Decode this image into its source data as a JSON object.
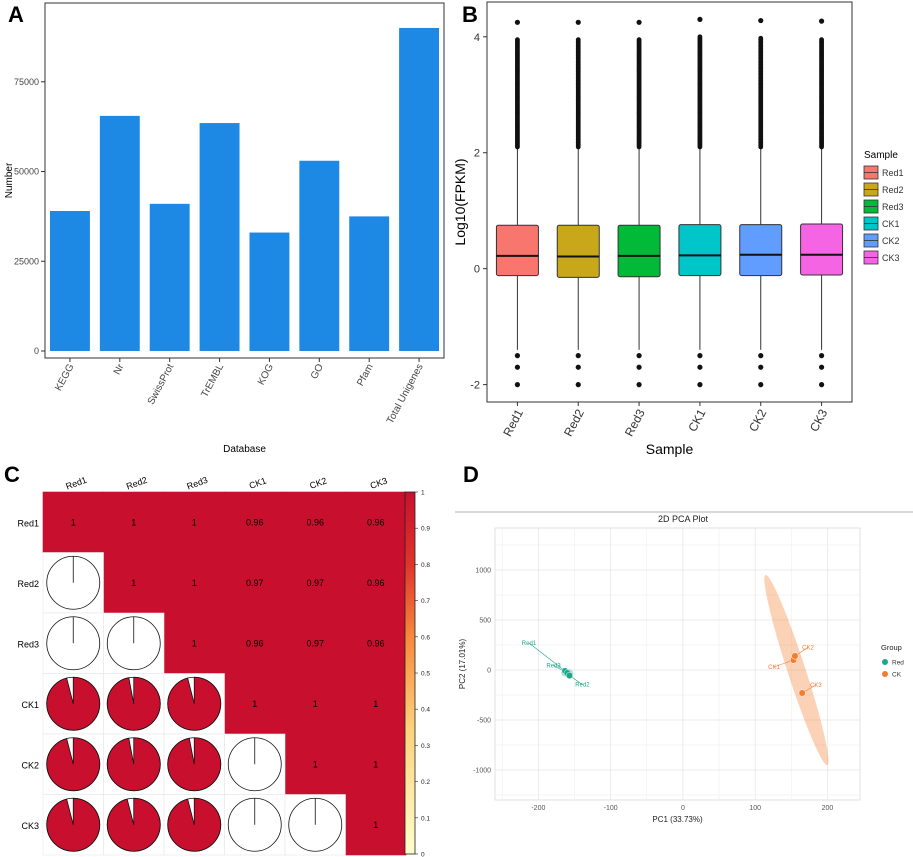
{
  "panels": [
    {
      "letter": "A"
    },
    {
      "letter": "B"
    },
    {
      "letter": "C"
    },
    {
      "letter": "D"
    }
  ],
  "chart_data": [
    {
      "type": "bar",
      "categories": [
        "KEGG",
        "Nr",
        "SwissProt",
        "TrEMBL",
        "KOG",
        "GO",
        "Pfam",
        "Total Unigenes"
      ],
      "values": [
        39000,
        65500,
        41000,
        63500,
        33000,
        53000,
        37500,
        90000
      ],
      "xlabel": "Database",
      "ylabel": "Number",
      "yticks": [
        0,
        25000,
        50000,
        75000
      ],
      "ytick_labels": [
        "0",
        "25000",
        "50000",
        "75000"
      ],
      "ylim": [
        0,
        95000
      ],
      "color": "#1E88E5"
    },
    {
      "type": "box",
      "categories": [
        "Red1",
        "Red2",
        "Red3",
        "CK1",
        "CK2",
        "CK3"
      ],
      "boxes": [
        {
          "q1": -0.12,
          "median": 0.22,
          "q3": 0.75,
          "whisker_low": -1.4,
          "whisker_high": 2.1,
          "max_outlier": 4.25
        },
        {
          "q1": -0.15,
          "median": 0.21,
          "q3": 0.75,
          "whisker_low": -1.4,
          "whisker_high": 2.1,
          "max_outlier": 4.25
        },
        {
          "q1": -0.14,
          "median": 0.22,
          "q3": 0.75,
          "whisker_low": -1.4,
          "whisker_high": 2.1,
          "max_outlier": 4.25
        },
        {
          "q1": -0.12,
          "median": 0.23,
          "q3": 0.76,
          "whisker_low": -1.4,
          "whisker_high": 2.1,
          "max_outlier": 4.3
        },
        {
          "q1": -0.12,
          "median": 0.24,
          "q3": 0.76,
          "whisker_low": -1.4,
          "whisker_high": 2.1,
          "max_outlier": 4.28
        },
        {
          "q1": -0.11,
          "median": 0.24,
          "q3": 0.77,
          "whisker_low": -1.4,
          "whisker_high": 2.1,
          "max_outlier": 4.27
        }
      ],
      "low_outliers": [
        -1.5,
        -1.7,
        -2.0
      ],
      "xlabel": "Sample",
      "ylabel": "Log10(FPKM)",
      "yticks": [
        -2,
        0,
        2,
        4
      ],
      "ytick_labels": [
        "-2",
        "0",
        "2",
        "4"
      ],
      "ylim": [
        -2.3,
        4.6
      ],
      "legend_title": "Sample",
      "legend": [
        "Red1",
        "Red2",
        "Red3",
        "CK1",
        "CK2",
        "CK3"
      ],
      "colors": [
        "#F8766D",
        "#C9A71B",
        "#00BA38",
        "#00C5C9",
        "#619CFF",
        "#F564E3"
      ]
    },
    {
      "type": "heatmap",
      "labels": [
        "Red1",
        "Red2",
        "Red3",
        "CK1",
        "CK2",
        "CK3"
      ],
      "matrix": [
        [
          1,
          1,
          1,
          0.96,
          0.96,
          0.96
        ],
        [
          1,
          1,
          1,
          0.97,
          0.97,
          0.96
        ],
        [
          1,
          1,
          1,
          0.96,
          0.97,
          0.96
        ],
        [
          0.96,
          0.97,
          0.96,
          1,
          1,
          1
        ],
        [
          0.96,
          0.97,
          0.97,
          1,
          1,
          1
        ],
        [
          0.96,
          0.96,
          0.96,
          1,
          1,
          1
        ]
      ],
      "upper_labels": [
        [
          "1",
          "1",
          "1",
          "0.96",
          "0.96",
          "0.96"
        ],
        [
          "",
          "1",
          "1",
          "0.97",
          "0.97",
          "0.96"
        ],
        [
          "",
          "",
          "1",
          "0.96",
          "0.97",
          "0.96"
        ],
        [
          "",
          "",
          "",
          "1",
          "1",
          "1"
        ],
        [
          "",
          "",
          "",
          "",
          "1",
          "1"
        ],
        [
          "",
          "",
          "",
          "",
          "",
          "1"
        ]
      ],
      "colorbar_ticks": [
        0,
        0.1,
        0.2,
        0.3,
        0.4,
        0.5,
        0.6,
        0.7,
        0.8,
        0.9,
        1
      ],
      "colorbar_labels": [
        "0",
        "0.1",
        "0.2",
        "0.3",
        "0.4",
        "0.5",
        "0.6",
        "0.7",
        "0.8",
        "0.9",
        "1"
      ],
      "color_high": "#C8102E",
      "color_low": "#FFFFCC"
    },
    {
      "type": "scatter",
      "title": "2D PCA Plot",
      "xlabel": "PC1 (33.73%)",
      "ylabel": "PC2 (17.01%)",
      "xlim": [
        -260,
        245
      ],
      "ylim": [
        -1300,
        1420
      ],
      "xticks": [
        -200,
        -100,
        0,
        100,
        200
      ],
      "xtick_labels": [
        "-200",
        "-100",
        "0",
        "100",
        "200"
      ],
      "yticks": [
        -1000,
        -500,
        0,
        500,
        1000
      ],
      "ytick_labels": [
        "-1000",
        "-500",
        "0",
        "500",
        "1000"
      ],
      "legend_title": "Group",
      "groups": [
        {
          "name": "Red",
          "color": "#1AA78A",
          "points": [
            {
              "label": "Red1",
              "x": -163,
              "y": -10
            },
            {
              "label": "Red3",
              "x": -160,
              "y": -30
            },
            {
              "label": "Red2",
              "x": -157,
              "y": -55
            }
          ]
        },
        {
          "name": "CK",
          "color": "#F47D2F",
          "points": [
            {
              "label": "CK1",
              "x": 153,
              "y": 100
            },
            {
              "label": "CK2",
              "x": 155,
              "y": 140
            },
            {
              "label": "CK3",
              "x": 165,
              "y": -230
            }
          ]
        }
      ],
      "label_positions": [
        {
          "label": "Red1",
          "x": -213,
          "y": 270
        },
        {
          "label": "Red3",
          "x": -179,
          "y": 45
        },
        {
          "label": "Red2",
          "x": -139,
          "y": -145
        },
        {
          "label": "CK2",
          "x": 173,
          "y": 225
        },
        {
          "label": "CK1",
          "x": 126,
          "y": 30
        },
        {
          "label": "CK3",
          "x": 184,
          "y": -150
        }
      ]
    }
  ]
}
